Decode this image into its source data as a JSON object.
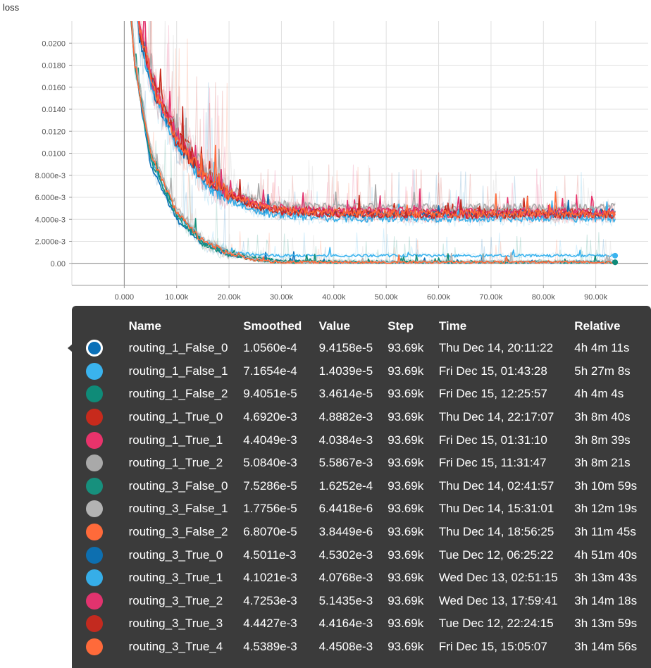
{
  "chart_data": {
    "type": "line",
    "title": "loss",
    "xlabel": "",
    "ylabel": "",
    "xlim": [
      -10000,
      100000
    ],
    "ylim": [
      -0.002,
      0.022
    ],
    "x_ticks": [
      0,
      10000,
      20000,
      30000,
      40000,
      50000,
      60000,
      70000,
      80000,
      90000
    ],
    "x_tick_labels": [
      "0.000",
      "10.00k",
      "20.00k",
      "30.00k",
      "40.00k",
      "50.00k",
      "60.00k",
      "70.00k",
      "80.00k",
      "90.00k"
    ],
    "y_ticks": [
      0,
      0.002,
      0.004,
      0.006,
      0.008,
      0.01,
      0.012,
      0.014,
      0.016,
      0.018,
      0.02
    ],
    "y_tick_labels": [
      "0.00",
      "2.000e-3",
      "4.000e-3",
      "6.000e-3",
      "8.000e-3",
      "0.0100",
      "0.0120",
      "0.0140",
      "0.0160",
      "0.0180",
      "0.0200"
    ],
    "grid": true,
    "legend_position": "bottom",
    "series": [
      {
        "name": "routing_1_False_0",
        "color": "#0a70b8",
        "plateau": 0.0002,
        "decay": 4000,
        "values": [
          [
            0,
            0.03
          ],
          [
            2000,
            0.018
          ],
          [
            5000,
            0.009
          ],
          [
            10000,
            0.004
          ],
          [
            15000,
            0.0018
          ],
          [
            20000,
            0.0008
          ],
          [
            25000,
            0.0004
          ],
          [
            30000,
            0.0002
          ],
          [
            40000,
            0.0001
          ],
          [
            60000,
            0.0001
          ],
          [
            80000,
            0.0001
          ],
          [
            93690,
            0.0001
          ]
        ]
      },
      {
        "name": "routing_1_False_1",
        "color": "#3ab3ee",
        "plateau": 0.0007,
        "decay": 4200,
        "values": [
          [
            0,
            0.03
          ],
          [
            2000,
            0.018
          ],
          [
            5000,
            0.0095
          ],
          [
            10000,
            0.0045
          ],
          [
            15000,
            0.002
          ],
          [
            20000,
            0.001
          ],
          [
            25000,
            0.0008
          ],
          [
            30000,
            0.0007
          ],
          [
            50000,
            0.0007
          ],
          [
            70000,
            0.0007
          ],
          [
            93690,
            0.0007
          ]
        ]
      },
      {
        "name": "routing_1_False_2",
        "color": "#0f8b78",
        "plateau": 0.0002,
        "decay": 4500,
        "values": [
          [
            0,
            0.03
          ],
          [
            2000,
            0.019
          ],
          [
            5000,
            0.01
          ],
          [
            10000,
            0.0045
          ],
          [
            15000,
            0.002
          ],
          [
            20000,
            0.001
          ],
          [
            25000,
            0.0005
          ],
          [
            30000,
            0.0002
          ],
          [
            50000,
            0.0001
          ],
          [
            93690,
            0.0001
          ]
        ]
      },
      {
        "name": "routing_1_True_0",
        "color": "#c72a1c",
        "plateau": 0.0046,
        "decay": 7000,
        "values": [
          [
            0,
            0.035
          ],
          [
            3000,
            0.021
          ],
          [
            6000,
            0.016
          ],
          [
            10000,
            0.012
          ],
          [
            15000,
            0.0085
          ],
          [
            20000,
            0.0065
          ],
          [
            25000,
            0.0055
          ],
          [
            30000,
            0.005
          ],
          [
            40000,
            0.0047
          ],
          [
            60000,
            0.0047
          ],
          [
            80000,
            0.0047
          ],
          [
            93690,
            0.0047
          ]
        ]
      },
      {
        "name": "routing_1_True_1",
        "color": "#e8336b",
        "plateau": 0.0045,
        "decay": 7000,
        "values": [
          [
            0,
            0.035
          ],
          [
            3000,
            0.021
          ],
          [
            6000,
            0.016
          ],
          [
            10000,
            0.0118
          ],
          [
            15000,
            0.0083
          ],
          [
            20000,
            0.0063
          ],
          [
            25000,
            0.0053
          ],
          [
            30000,
            0.0048
          ],
          [
            40000,
            0.0045
          ],
          [
            60000,
            0.0044
          ],
          [
            80000,
            0.0044
          ],
          [
            93690,
            0.0044
          ]
        ]
      },
      {
        "name": "routing_1_True_2",
        "color": "#a9a9a9",
        "plateau": 0.005,
        "decay": 7000,
        "values": [
          [
            0,
            0.035
          ],
          [
            3000,
            0.021
          ],
          [
            6000,
            0.016
          ],
          [
            10000,
            0.012
          ],
          [
            15000,
            0.0088
          ],
          [
            20000,
            0.0068
          ],
          [
            25000,
            0.0058
          ],
          [
            30000,
            0.0053
          ],
          [
            40000,
            0.0051
          ],
          [
            60000,
            0.0051
          ],
          [
            80000,
            0.0051
          ],
          [
            93690,
            0.0051
          ]
        ]
      },
      {
        "name": "routing_3_False_0",
        "color": "#17907d",
        "plateau": 0.0001,
        "decay": 4200,
        "values": [
          [
            0,
            0.03
          ],
          [
            2000,
            0.018
          ],
          [
            5000,
            0.0095
          ],
          [
            10000,
            0.0042
          ],
          [
            15000,
            0.0018
          ],
          [
            20000,
            0.0008
          ],
          [
            25000,
            0.0003
          ],
          [
            30000,
            0.0001
          ],
          [
            93690,
            0.0001
          ]
        ]
      },
      {
        "name": "routing_3_False_1",
        "color": "#b3b3b3",
        "plateau": 0.0001,
        "decay": 4600,
        "values": [
          [
            0,
            0.03
          ],
          [
            2000,
            0.019
          ],
          [
            5000,
            0.0105
          ],
          [
            10000,
            0.005
          ],
          [
            15000,
            0.0022
          ],
          [
            20000,
            0.001
          ],
          [
            25000,
            0.0004
          ],
          [
            30000,
            0.0001
          ],
          [
            93690,
            0.0001
          ]
        ]
      },
      {
        "name": "routing_3_False_2",
        "color": "#ff6a3a",
        "plateau": 0.0001,
        "decay": 4400,
        "values": [
          [
            0,
            0.03
          ],
          [
            2000,
            0.018
          ],
          [
            5000,
            0.01
          ],
          [
            10000,
            0.0046
          ],
          [
            15000,
            0.002
          ],
          [
            20000,
            0.0009
          ],
          [
            25000,
            0.0003
          ],
          [
            30000,
            0.0001
          ],
          [
            93690,
            0.0001
          ]
        ]
      },
      {
        "name": "routing_3_True_0",
        "color": "#0d6fb0",
        "plateau": 0.0045,
        "decay": 6500,
        "values": [
          [
            0,
            0.035
          ],
          [
            3000,
            0.02
          ],
          [
            6000,
            0.015
          ],
          [
            10000,
            0.011
          ],
          [
            15000,
            0.0078
          ],
          [
            20000,
            0.006
          ],
          [
            25000,
            0.0051
          ],
          [
            30000,
            0.0047
          ],
          [
            40000,
            0.0045
          ],
          [
            60000,
            0.0045
          ],
          [
            80000,
            0.0045
          ],
          [
            93690,
            0.0045
          ]
        ]
      },
      {
        "name": "routing_3_True_1",
        "color": "#36aee8",
        "plateau": 0.0041,
        "decay": 6500,
        "values": [
          [
            0,
            0.035
          ],
          [
            3000,
            0.02
          ],
          [
            6000,
            0.015
          ],
          [
            10000,
            0.0108
          ],
          [
            15000,
            0.0075
          ],
          [
            20000,
            0.0057
          ],
          [
            25000,
            0.0048
          ],
          [
            30000,
            0.0043
          ],
          [
            40000,
            0.0041
          ],
          [
            60000,
            0.0041
          ],
          [
            80000,
            0.0041
          ],
          [
            93690,
            0.0041
          ]
        ]
      },
      {
        "name": "routing_3_True_2",
        "color": "#e2336e",
        "plateau": 0.0047,
        "decay": 6800,
        "values": [
          [
            0,
            0.035
          ],
          [
            3000,
            0.021
          ],
          [
            6000,
            0.0155
          ],
          [
            10000,
            0.0115
          ],
          [
            15000,
            0.0082
          ],
          [
            20000,
            0.0064
          ],
          [
            25000,
            0.0054
          ],
          [
            30000,
            0.005
          ],
          [
            40000,
            0.0048
          ],
          [
            60000,
            0.0047
          ],
          [
            80000,
            0.0047
          ],
          [
            93690,
            0.0047
          ]
        ]
      },
      {
        "name": "routing_3_True_3",
        "color": "#c32a1f",
        "plateau": 0.0044,
        "decay": 6800,
        "values": [
          [
            0,
            0.035
          ],
          [
            3000,
            0.021
          ],
          [
            6000,
            0.0155
          ],
          [
            10000,
            0.0112
          ],
          [
            15000,
            0.008
          ],
          [
            20000,
            0.0062
          ],
          [
            25000,
            0.0052
          ],
          [
            30000,
            0.0047
          ],
          [
            40000,
            0.0045
          ],
          [
            60000,
            0.0044
          ],
          [
            80000,
            0.0044
          ],
          [
            93690,
            0.0044
          ]
        ]
      },
      {
        "name": "routing_3_True_4",
        "color": "#ff6a3a",
        "plateau": 0.0045,
        "decay": 6800,
        "values": [
          [
            0,
            0.035
          ],
          [
            3000,
            0.021
          ],
          [
            6000,
            0.0155
          ],
          [
            10000,
            0.0113
          ],
          [
            15000,
            0.0081
          ],
          [
            20000,
            0.0063
          ],
          [
            25000,
            0.0053
          ],
          [
            30000,
            0.0048
          ],
          [
            40000,
            0.0046
          ],
          [
            60000,
            0.0045
          ],
          [
            80000,
            0.0045
          ],
          [
            93690,
            0.0045
          ]
        ]
      }
    ]
  },
  "tooltip": {
    "headers": {
      "name": "Name",
      "smoothed": "Smoothed",
      "value": "Value",
      "step": "Step",
      "time": "Time",
      "relative": "Relative"
    },
    "rows": [
      {
        "color": "#0a70b8",
        "selected": true,
        "name": "routing_1_False_0",
        "smoothed": "1.0560e-4",
        "value": "9.4158e-5",
        "step": "93.69k",
        "time": "Thu Dec 14, 20:11:22",
        "relative": "4h 4m 11s"
      },
      {
        "color": "#3ab3ee",
        "name": "routing_1_False_1",
        "smoothed": "7.1654e-4",
        "value": "1.4039e-5",
        "step": "93.69k",
        "time": "Fri Dec 15, 01:43:28",
        "relative": "5h 27m 8s"
      },
      {
        "color": "#0f8b78",
        "name": "routing_1_False_2",
        "smoothed": "9.4051e-5",
        "value": "3.4614e-5",
        "step": "93.69k",
        "time": "Fri Dec 15, 12:25:57",
        "relative": "4h 4m 4s"
      },
      {
        "color": "#c72a1c",
        "name": "routing_1_True_0",
        "smoothed": "4.6920e-3",
        "value": "4.8882e-3",
        "step": "93.69k",
        "time": "Thu Dec 14, 22:17:07",
        "relative": "3h 8m 40s"
      },
      {
        "color": "#e8336b",
        "name": "routing_1_True_1",
        "smoothed": "4.4049e-3",
        "value": "4.0384e-3",
        "step": "93.69k",
        "time": "Fri Dec 15, 01:31:10",
        "relative": "3h 8m 39s"
      },
      {
        "color": "#a9a9a9",
        "name": "routing_1_True_2",
        "smoothed": "5.0840e-3",
        "value": "5.5867e-3",
        "step": "93.69k",
        "time": "Fri Dec 15, 11:31:47",
        "relative": "3h 8m 21s"
      },
      {
        "color": "#17907d",
        "name": "routing_3_False_0",
        "smoothed": "7.5286e-5",
        "value": "1.6252e-4",
        "step": "93.69k",
        "time": "Thu Dec 14, 02:41:57",
        "relative": "3h 10m 59s"
      },
      {
        "color": "#b3b3b3",
        "name": "routing_3_False_1",
        "smoothed": "1.7756e-5",
        "value": "6.4418e-6",
        "step": "93.69k",
        "time": "Thu Dec 14, 15:31:01",
        "relative": "3h 12m 19s"
      },
      {
        "color": "#ff6a3a",
        "name": "routing_3_False_2",
        "smoothed": "6.8070e-5",
        "value": "3.8449e-6",
        "step": "93.69k",
        "time": "Thu Dec 14, 18:56:25",
        "relative": "3h 11m 45s"
      },
      {
        "color": "#0d6fb0",
        "name": "routing_3_True_0",
        "smoothed": "4.5011e-3",
        "value": "4.5302e-3",
        "step": "93.69k",
        "time": "Tue Dec 12, 06:25:22",
        "relative": "4h 51m 40s"
      },
      {
        "color": "#36aee8",
        "name": "routing_3_True_1",
        "smoothed": "4.1021e-3",
        "value": "4.0768e-3",
        "step": "93.69k",
        "time": "Wed Dec 13, 02:51:15",
        "relative": "3h 13m 43s"
      },
      {
        "color": "#e2336e",
        "name": "routing_3_True_2",
        "smoothed": "4.7253e-3",
        "value": "5.1435e-3",
        "step": "93.69k",
        "time": "Wed Dec 13, 17:59:41",
        "relative": "3h 14m 18s"
      },
      {
        "color": "#c32a1f",
        "name": "routing_3_True_3",
        "smoothed": "4.4427e-3",
        "value": "4.4164e-3",
        "step": "93.69k",
        "time": "Tue Dec 12, 22:24:15",
        "relative": "3h 13m 59s"
      },
      {
        "color": "#ff6a3a",
        "name": "routing_3_True_4",
        "smoothed": "4.5389e-3",
        "value": "4.4508e-3",
        "step": "93.69k",
        "time": "Fri Dec 15, 15:05:07",
        "relative": "3h 14m 56s"
      }
    ]
  }
}
